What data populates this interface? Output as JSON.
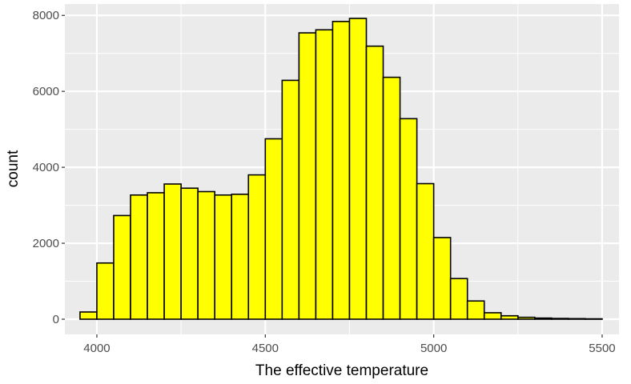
{
  "chart_data": {
    "type": "bar",
    "xlabel": "The effective temperature",
    "ylabel": "count",
    "xlim": [
      3905,
      5550
    ],
    "ylim": [
      -400,
      8300
    ],
    "x_ticks": [
      4000,
      4500,
      5000,
      5500
    ],
    "x_tick_labels": [
      "4000",
      "4500",
      "5000",
      "5500"
    ],
    "y_ticks": [
      0,
      2000,
      4000,
      6000,
      8000
    ],
    "y_tick_labels": [
      "0",
      "2000",
      "4000",
      "6000",
      "8000"
    ],
    "bin_width": 50,
    "bin_centers": [
      3975,
      4025,
      4075,
      4125,
      4175,
      4225,
      4275,
      4325,
      4375,
      4425,
      4475,
      4525,
      4575,
      4625,
      4675,
      4725,
      4775,
      4825,
      4875,
      4925,
      4975,
      5025,
      5075,
      5125,
      5175,
      5225,
      5275,
      5325,
      5375,
      5425,
      5475
    ],
    "values": [
      190,
      1480,
      2730,
      3270,
      3330,
      3560,
      3450,
      3360,
      3270,
      3290,
      3800,
      4750,
      6290,
      7540,
      7620,
      7840,
      7920,
      7190,
      6370,
      5280,
      3570,
      2150,
      1070,
      480,
      170,
      90,
      50,
      30,
      20,
      15,
      10
    ],
    "grid": true,
    "colors": {
      "panel_bg": "#ebebeb",
      "grid": "#ffffff",
      "bar_fill": "#ffff00",
      "bar_stroke": "#000000"
    }
  }
}
